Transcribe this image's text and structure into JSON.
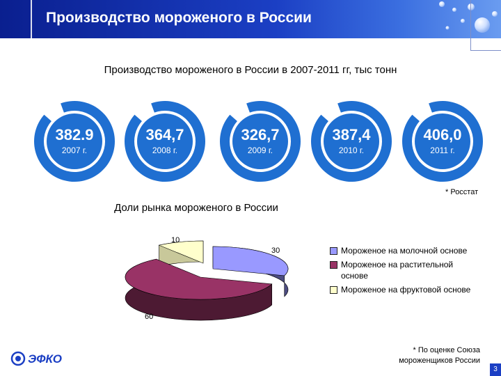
{
  "header": {
    "title": "Производство мороженого в России"
  },
  "production": {
    "title": "Производство мороженого в России в 2007-2011 гг, тыс тонн",
    "items": [
      {
        "value": "382.9",
        "year": "2007 г."
      },
      {
        "value": "364,7",
        "year": "2008 г."
      },
      {
        "value": "326,7",
        "year": "2009 г."
      },
      {
        "value": "387,4",
        "year": "2010 г."
      },
      {
        "value": "406,0",
        "year": "2011 г."
      }
    ],
    "source": "* Росстат"
  },
  "market": {
    "title": "Доли рынка мороженого в России",
    "slices": [
      {
        "label": "Мороженое на молочной основе",
        "value": 30,
        "value_label": "30",
        "color": "#9999ff"
      },
      {
        "label": "Мороженое на растительной основе",
        "value": 60,
        "value_label": "60",
        "color": "#993366"
      },
      {
        "label": "Мороженое на фруктовой основе",
        "value": 10,
        "value_label": "10",
        "color": "#ffffcc"
      }
    ]
  },
  "chart_data": {
    "type": "pie",
    "title": "Доли рынка мороженого в России",
    "categories": [
      "Мороженое на молочной основе",
      "Мороженое на растительной основе",
      "Мороженое на фруктовой основе"
    ],
    "values": [
      30,
      60,
      10
    ],
    "legend": "right"
  },
  "footer": {
    "logo_text": "ЭФКО",
    "note": "* По оценке Союза мороженщиков России",
    "page": "3"
  },
  "colors": {
    "header_blue": "#1b3fc4",
    "donut_blue": "#1f6fd1",
    "accent": "#ffffff"
  }
}
